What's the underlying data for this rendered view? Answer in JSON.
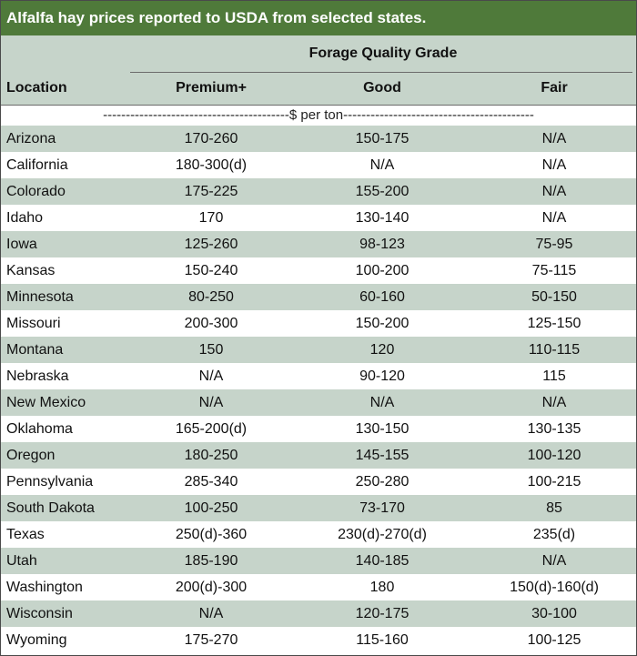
{
  "title": "Alfalfa hay prices reported to USDA from selected states.",
  "header": {
    "group_label": "Forage Quality Grade",
    "location_label": "Location",
    "columns": [
      "Premium+",
      "Good",
      "Fair"
    ]
  },
  "unit_row": "-----------------------------------------$ per ton------------------------------------------",
  "rows": [
    {
      "location": "Arizona",
      "premium": "170-260",
      "good": "150-175",
      "fair": "N/A"
    },
    {
      "location": "California",
      "premium": "180-300(d)",
      "good": "N/A",
      "fair": "N/A"
    },
    {
      "location": "Colorado",
      "premium": "175-225",
      "good": "155-200",
      "fair": "N/A"
    },
    {
      "location": "Idaho",
      "premium": "170",
      "good": "130-140",
      "fair": "N/A"
    },
    {
      "location": "Iowa",
      "premium": "125-260",
      "good": "98-123",
      "fair": "75-95"
    },
    {
      "location": "Kansas",
      "premium": "150-240",
      "good": "100-200",
      "fair": "75-115"
    },
    {
      "location": "Minnesota",
      "premium": "80-250",
      "good": "60-160",
      "fair": "50-150"
    },
    {
      "location": "Missouri",
      "premium": "200-300",
      "good": "150-200",
      "fair": "125-150"
    },
    {
      "location": "Montana",
      "premium": "150",
      "good": "120",
      "fair": "110-115"
    },
    {
      "location": "Nebraska",
      "premium": "N/A",
      "good": "90-120",
      "fair": "115"
    },
    {
      "location": "New Mexico",
      "premium": "N/A",
      "good": "N/A",
      "fair": "N/A"
    },
    {
      "location": "Oklahoma",
      "premium": "165-200(d)",
      "good": "130-150",
      "fair": "130-135"
    },
    {
      "location": "Oregon",
      "premium": "180-250",
      "good": "145-155",
      "fair": "100-120"
    },
    {
      "location": "Pennsylvania",
      "premium": "285-340",
      "good": "250-280",
      "fair": "100-215"
    },
    {
      "location": "South Dakota",
      "premium": "100-250",
      "good": "73-170",
      "fair": "85"
    },
    {
      "location": "Texas",
      "premium": "250(d)-360",
      "good": "230(d)-270(d)",
      "fair": "235(d)"
    },
    {
      "location": "Utah",
      "premium": "185-190",
      "good": "140-185",
      "fair": "N/A"
    },
    {
      "location": "Washington",
      "premium": "200(d)-300",
      "good": "180",
      "fair": "150(d)-160(d)"
    },
    {
      "location": "Wisconsin",
      "premium": "N/A",
      "good": "120-175",
      "fair": "30-100"
    },
    {
      "location": "Wyoming",
      "premium": "175-270",
      "good": "115-160",
      "fair": "100-125"
    }
  ]
}
